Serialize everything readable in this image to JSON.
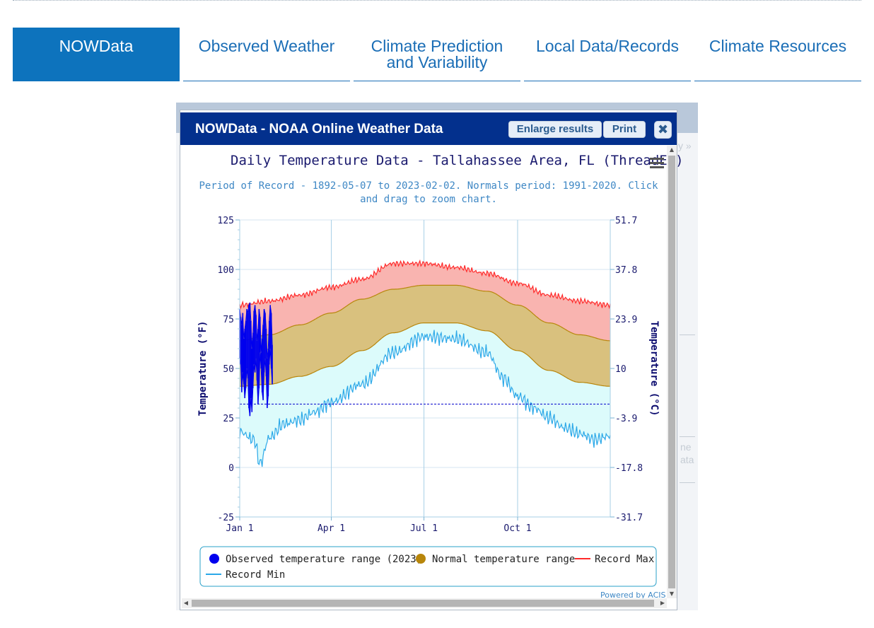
{
  "tabs": [
    {
      "label": "NOWData",
      "active": true
    },
    {
      "label": "Observed Weather"
    },
    {
      "label": "Climate Prediction",
      "label2": "and Variability"
    },
    {
      "label": "Local Data/Records"
    },
    {
      "label": "Climate Resources"
    }
  ],
  "background_fragments": {
    "nav_right": "y »",
    "text_1": "ne",
    "text_2": "ata"
  },
  "dialog": {
    "title": "NOWData - NOAA Online Weather Data",
    "enlarge_label": "Enlarge results",
    "print_label": "Print",
    "powered_by": "Powered by ACIS"
  },
  "colors": {
    "tab_active_bg": "#0d73bd",
    "titlebar_bg": "#03308d",
    "record_max": "#ff2a2a",
    "record_min": "#2ba8e8",
    "normal_range": "#b8860b",
    "observed": "#0000ee"
  },
  "chart_data": {
    "type": "line",
    "title": "Daily Temperature Data - Tallahassee Area, FL (ThreadEx)",
    "subtitle_line1": "Period of Record - 1892-05-07 to 2023-02-02. Normals period: 1991-2020. Click",
    "subtitle_line2": "and drag to zoom chart.",
    "ylabel": "Temperature (°F)",
    "ylabel_right": "Temperature (°C)",
    "ylim": [
      -25,
      125
    ],
    "y_ticks": [
      -25,
      0,
      25,
      50,
      75,
      100,
      125
    ],
    "y_right_ticks": [
      "-31.7",
      "-17.8",
      "-3.9",
      "10",
      "23.9",
      "37.8",
      "51.7"
    ],
    "x_ticks": [
      {
        "day": 1,
        "label": "Jan 1"
      },
      {
        "day": 91,
        "label": "Apr 1"
      },
      {
        "day": 182,
        "label": "Jul 1"
      },
      {
        "day": 274,
        "label": "Oct 1"
      }
    ],
    "freezing_line_f": 32,
    "legend": [
      {
        "label": "Observed temperature range (2023)",
        "symbol": "dot",
        "color": "#0000ee"
      },
      {
        "label": "Normal temperature range",
        "symbol": "dot",
        "color": "#b8860b"
      },
      {
        "label": "Record Max",
        "symbol": "line",
        "color": "#ff2a2a"
      },
      {
        "label": "Record Min",
        "symbol": "line",
        "color": "#2ba8e8"
      }
    ],
    "record_max": {
      "x": [
        1,
        30,
        60,
        91,
        121,
        152,
        182,
        213,
        244,
        274,
        305,
        335,
        365
      ],
      "y": [
        82,
        84,
        87,
        91,
        95,
        103,
        103,
        101,
        98,
        93,
        87,
        84,
        82
      ]
    },
    "normal_max": {
      "x": [
        1,
        30,
        60,
        91,
        121,
        152,
        182,
        213,
        244,
        274,
        305,
        335,
        365
      ],
      "y": [
        64,
        67,
        72,
        78,
        85,
        90,
        92,
        92,
        89,
        82,
        73,
        67,
        64
      ]
    },
    "normal_min": {
      "x": [
        1,
        30,
        60,
        91,
        121,
        152,
        182,
        213,
        244,
        274,
        305,
        335,
        365
      ],
      "y": [
        41,
        42,
        46,
        51,
        59,
        68,
        73,
        73,
        69,
        59,
        49,
        43,
        41
      ]
    },
    "record_min": {
      "x": [
        1,
        15,
        21,
        30,
        45,
        60,
        75,
        91,
        121,
        152,
        182,
        213,
        244,
        260,
        274,
        290,
        305,
        320,
        335,
        350,
        365
      ],
      "y": [
        18,
        14,
        2,
        15,
        22,
        24,
        28,
        33,
        42,
        58,
        66,
        65,
        58,
        45,
        36,
        30,
        25,
        20,
        17,
        14,
        16
      ]
    },
    "observed_2023": {
      "x": [
        1,
        2,
        3,
        4,
        5,
        6,
        7,
        8,
        9,
        10,
        11,
        12,
        13,
        14,
        15,
        16,
        17,
        18,
        19,
        20,
        21,
        22,
        23,
        24,
        25,
        26,
        27,
        28,
        29,
        30,
        31,
        32,
        33
      ],
      "high": [
        80,
        76,
        72,
        78,
        65,
        70,
        74,
        80,
        78,
        82,
        83,
        74,
        60,
        68,
        79,
        82,
        77,
        64,
        70,
        80,
        76,
        58,
        65,
        72,
        80,
        78,
        70,
        55,
        60,
        74,
        82,
        78,
        62
      ],
      "low": [
        55,
        52,
        38,
        48,
        42,
        35,
        40,
        50,
        45,
        30,
        26,
        35,
        28,
        40,
        52,
        48,
        55,
        44,
        32,
        40,
        58,
        50,
        38,
        34,
        48,
        55,
        46,
        30,
        36,
        52,
        60,
        50,
        42
      ]
    }
  }
}
